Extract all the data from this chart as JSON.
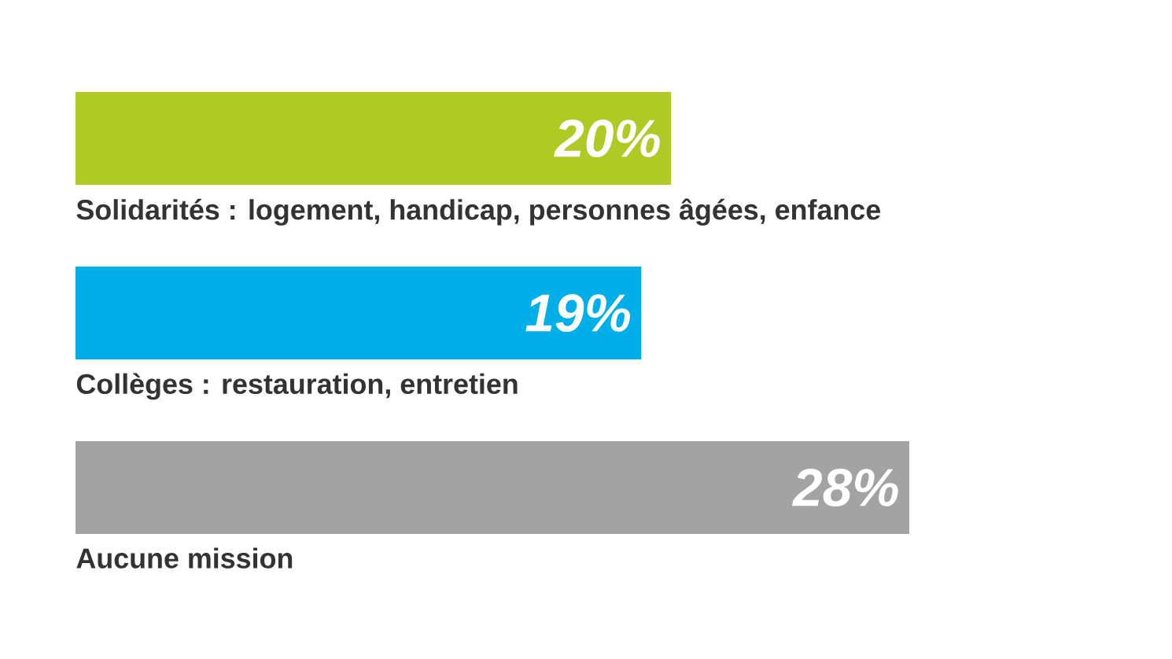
{
  "chart_data": {
    "type": "bar",
    "orientation": "horizontal",
    "categories": [
      "Solidarités : logement, handicap, personnes âgées, enfance",
      "Collèges : restauration, entretien",
      "Aucune mission"
    ],
    "values": [
      20,
      19,
      28
    ],
    "colors": [
      "#b1c924",
      "#00aee8",
      "#a3a3a3"
    ],
    "value_labels": [
      "20%",
      "19%",
      "28%"
    ]
  }
}
